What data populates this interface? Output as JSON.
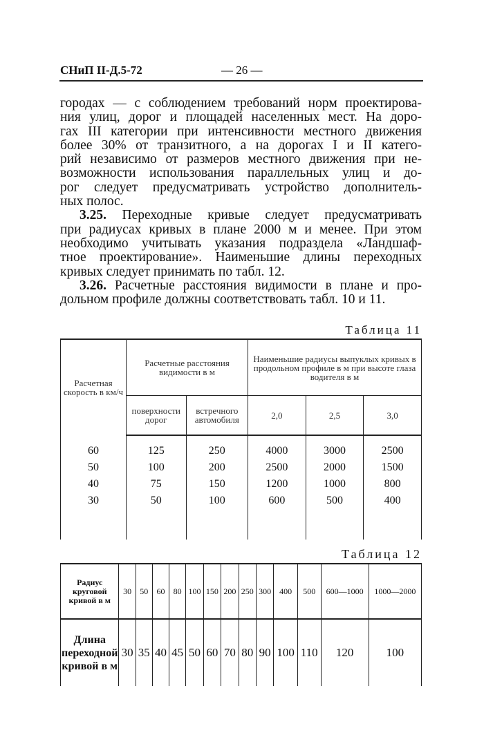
{
  "header": {
    "doc_code": "СНиП II-Д.5-72",
    "page_number": "— 26 —"
  },
  "body_lines": [
    {
      "text": "городах — с соблюдением требований норм проектирова-"
    },
    {
      "text": "ния улиц, дорог и площадей населенных мест. На доро-"
    },
    {
      "text": "гах III категории при интенсивности местного движения"
    },
    {
      "text": "более 30% от транзитного, а на дорогах I и II катего-"
    },
    {
      "text": "рий независимо от размеров местного движения при не-"
    },
    {
      "text": "возможности использования параллельных улиц и до-"
    },
    {
      "text": "рог следует предусматривать устройство дополнитель-"
    },
    {
      "text": "ных полос.",
      "last": true
    },
    {
      "num": "3.25.",
      "text": " Переходные кривые следует предусматривать"
    },
    {
      "text": "при радиусах кривых в плане 2000 м и менее. При этом"
    },
    {
      "text": "необходимо учитывать указания подраздела «Ландшаф-"
    },
    {
      "text": "тное проектирование». Наименьшие длины переходных"
    },
    {
      "text": "кривых следует принимать по табл. 12.",
      "last": true
    },
    {
      "num": "3.26.",
      "text": " Расчетные расстояния видимости в плане и про-"
    },
    {
      "text": "дольном профиле должны соответствовать табл. 10 и 11.",
      "last": true
    }
  ],
  "table11": {
    "caption": "Таблица 11",
    "col_speed": "Расчетная скорость в км/ч",
    "group_visibility": "Расчетные расстояния видимости в м",
    "group_radii": "Наименьшие радиусы выпуклых кривых в продольном профиле в м при высоте глаза водителя в м",
    "sub_headers": [
      "поверхности дорог",
      "встречного автомобиля",
      "2,0",
      "2,5",
      "3,0"
    ],
    "rows": [
      [
        "60",
        "125",
        "250",
        "4000",
        "3000",
        "2500"
      ],
      [
        "50",
        "100",
        "200",
        "2500",
        "2000",
        "1500"
      ],
      [
        "40",
        "75",
        "150",
        "1200",
        "1000",
        "800"
      ],
      [
        "30",
        "50",
        "100",
        "600",
        "500",
        "400"
      ]
    ]
  },
  "table12": {
    "caption": "Таблица 12",
    "row1_label": "Радиус круговой кривой в м",
    "row1_values": [
      "30",
      "50",
      "60",
      "80",
      "100",
      "150",
      "200",
      "250",
      "300",
      "400",
      "500",
      "600—1000",
      "1000—2000"
    ],
    "row2_label": "Длина переходной кривой в м",
    "row2_values": [
      "30",
      "35",
      "40",
      "45",
      "50",
      "60",
      "70",
      "80",
      "90",
      "100",
      "110",
      "120",
      "100"
    ]
  }
}
